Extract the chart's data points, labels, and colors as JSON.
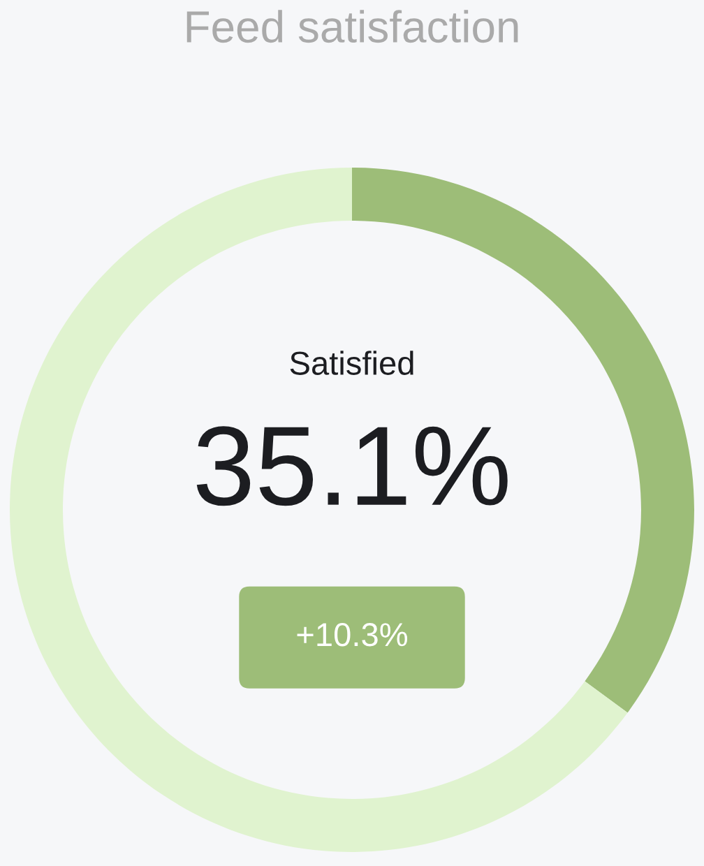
{
  "chart_data": {
    "type": "donut",
    "title": "Feed satisfaction",
    "categories": [
      "Satisfied",
      null
    ],
    "values": [
      35.1,
      64.9
    ],
    "colors": [
      "#9dbd78",
      "#e0f3cf"
    ],
    "value_labels": [
      "35.1%",
      null
    ],
    "annotations": [
      "+10.3%"
    ]
  }
}
